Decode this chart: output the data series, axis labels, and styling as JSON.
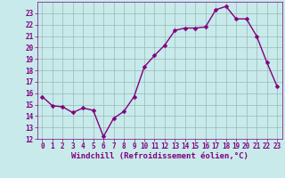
{
  "x": [
    0,
    1,
    2,
    3,
    4,
    5,
    6,
    7,
    8,
    9,
    10,
    11,
    12,
    13,
    14,
    15,
    16,
    17,
    18,
    19,
    20,
    21,
    22,
    23
  ],
  "y": [
    15.7,
    14.9,
    14.8,
    14.3,
    14.7,
    14.5,
    12.2,
    13.8,
    14.4,
    15.7,
    18.3,
    19.3,
    20.2,
    21.5,
    21.7,
    21.7,
    21.8,
    23.3,
    23.6,
    22.5,
    22.5,
    21.0,
    18.7,
    16.6
  ],
  "line_color": "#800080",
  "marker_color": "#800080",
  "bg_color": "#c8eaea",
  "grid_color": "#9ab8b8",
  "xlabel": "Windchill (Refroidissement éolien,°C)",
  "xlabel_color": "#800080",
  "ylim": [
    12,
    24
  ],
  "xlim": [
    -0.5,
    23.5
  ],
  "yticks": [
    12,
    13,
    14,
    15,
    16,
    17,
    18,
    19,
    20,
    21,
    22,
    23
  ],
  "xticks": [
    0,
    1,
    2,
    3,
    4,
    5,
    6,
    7,
    8,
    9,
    10,
    11,
    12,
    13,
    14,
    15,
    16,
    17,
    18,
    19,
    20,
    21,
    22,
    23
  ],
  "tick_color": "#800080",
  "tick_fontsize": 5.5,
  "xlabel_fontsize": 6.5,
  "line_width": 1.0,
  "marker_size": 2.5
}
